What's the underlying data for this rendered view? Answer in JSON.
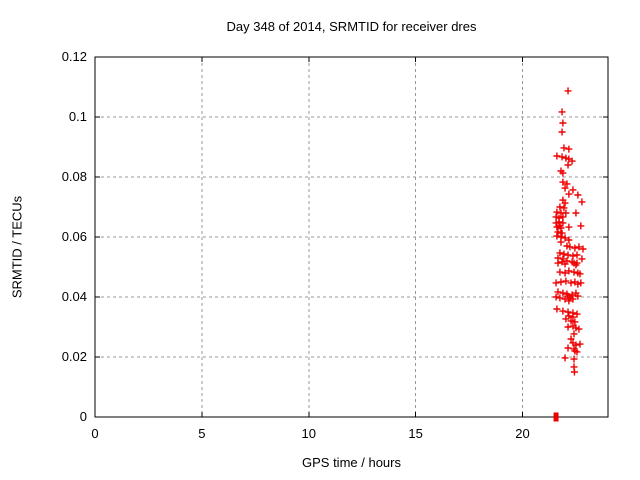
{
  "page": {
    "background": "#ffffff"
  },
  "chart_data": {
    "type": "scatter",
    "title": "Day 348 of 2014, SRMTID for receiver dres",
    "xlabel": "GPS time / hours",
    "ylabel": "SRMTID / TECUs",
    "xlim": [
      0,
      24
    ],
    "ylim": [
      0,
      0.12
    ],
    "xticks": [
      {
        "v": 0,
        "label": "0"
      },
      {
        "v": 5,
        "label": "5"
      },
      {
        "v": 10,
        "label": "10"
      },
      {
        "v": 15,
        "label": "15"
      },
      {
        "v": 20,
        "label": "20"
      }
    ],
    "yticks": [
      {
        "v": 0,
        "label": "0"
      },
      {
        "v": 0.02,
        "label": "0.02"
      },
      {
        "v": 0.04,
        "label": "0.04"
      },
      {
        "v": 0.06,
        "label": "0.06"
      },
      {
        "v": 0.08,
        "label": "0.08"
      },
      {
        "v": 0.1,
        "label": "0.1"
      },
      {
        "v": 0.12,
        "label": "0.12"
      }
    ],
    "grid": true,
    "grid_color": "#999999",
    "axis_color": "#000000",
    "legend": "none",
    "series": [
      {
        "name": "SRMTID values",
        "marker": "plus",
        "color": "#ee0000",
        "points": [
          [
            22.13,
            0.1087
          ],
          [
            21.85,
            0.1017
          ],
          [
            21.89,
            0.098
          ],
          [
            21.85,
            0.095
          ],
          [
            21.94,
            0.0897
          ],
          [
            22.17,
            0.0893
          ],
          [
            21.61,
            0.087
          ],
          [
            21.85,
            0.0867
          ],
          [
            22.03,
            0.0863
          ],
          [
            22.17,
            0.086
          ],
          [
            22.32,
            0.0853
          ],
          [
            22.13,
            0.084
          ],
          [
            21.8,
            0.082
          ],
          [
            21.89,
            0.0813
          ],
          [
            21.89,
            0.0783
          ],
          [
            22.08,
            0.0777
          ],
          [
            21.99,
            0.0763
          ],
          [
            22.36,
            0.0757
          ],
          [
            22.17,
            0.0743
          ],
          [
            22.59,
            0.074
          ],
          [
            21.89,
            0.0723
          ],
          [
            22.78,
            0.0717
          ],
          [
            21.99,
            0.0713
          ],
          [
            21.75,
            0.07
          ],
          [
            21.94,
            0.0697
          ],
          [
            21.61,
            0.0683
          ],
          [
            21.8,
            0.068
          ],
          [
            22.03,
            0.068
          ],
          [
            22.5,
            0.068
          ],
          [
            21.57,
            0.0667
          ],
          [
            21.71,
            0.0663
          ],
          [
            21.89,
            0.0667
          ],
          [
            21.71,
            0.065
          ],
          [
            21.57,
            0.0647
          ],
          [
            21.89,
            0.0647
          ],
          [
            21.75,
            0.0637
          ],
          [
            21.61,
            0.0633
          ],
          [
            21.8,
            0.063
          ],
          [
            22.17,
            0.0633
          ],
          [
            22.73,
            0.0637
          ],
          [
            21.66,
            0.0617
          ],
          [
            21.85,
            0.0613
          ],
          [
            21.61,
            0.0603
          ],
          [
            21.8,
            0.06
          ],
          [
            21.99,
            0.0597
          ],
          [
            22.17,
            0.059
          ],
          [
            21.8,
            0.0583
          ],
          [
            22.08,
            0.057
          ],
          [
            22.22,
            0.0567
          ],
          [
            22.45,
            0.0563
          ],
          [
            22.64,
            0.0567
          ],
          [
            22.83,
            0.056
          ],
          [
            21.75,
            0.0547
          ],
          [
            21.94,
            0.0543
          ],
          [
            22.13,
            0.054
          ],
          [
            22.36,
            0.0537
          ],
          [
            22.55,
            0.054
          ],
          [
            21.66,
            0.053
          ],
          [
            21.89,
            0.0527
          ],
          [
            22.08,
            0.052
          ],
          [
            22.32,
            0.0517
          ],
          [
            22.55,
            0.0513
          ],
          [
            22.78,
            0.0527
          ],
          [
            21.66,
            0.0513
          ],
          [
            21.85,
            0.0517
          ],
          [
            21.99,
            0.051
          ],
          [
            22.41,
            0.0513
          ],
          [
            22.5,
            0.0507
          ],
          [
            21.75,
            0.0483
          ],
          [
            21.99,
            0.048
          ],
          [
            22.17,
            0.0487
          ],
          [
            22.41,
            0.0483
          ],
          [
            22.59,
            0.048
          ],
          [
            22.69,
            0.0477
          ],
          [
            21.57,
            0.0447
          ],
          [
            21.8,
            0.045
          ],
          [
            22.03,
            0.0453
          ],
          [
            22.27,
            0.0447
          ],
          [
            22.45,
            0.045
          ],
          [
            22.59,
            0.0443
          ],
          [
            22.73,
            0.0447
          ],
          [
            21.66,
            0.0417
          ],
          [
            21.89,
            0.0413
          ],
          [
            22.08,
            0.041
          ],
          [
            22.32,
            0.0407
          ],
          [
            22.5,
            0.0413
          ],
          [
            22.59,
            0.0403
          ],
          [
            21.57,
            0.04
          ],
          [
            21.75,
            0.0397
          ],
          [
            21.99,
            0.0393
          ],
          [
            22.17,
            0.0387
          ],
          [
            22.36,
            0.0393
          ],
          [
            22.13,
            0.0403
          ],
          [
            22.22,
            0.0397
          ],
          [
            21.61,
            0.036
          ],
          [
            21.89,
            0.0353
          ],
          [
            22.13,
            0.035
          ],
          [
            22.36,
            0.0347
          ],
          [
            22.55,
            0.0343
          ],
          [
            22.17,
            0.0337
          ],
          [
            22.36,
            0.0333
          ],
          [
            22.03,
            0.0327
          ],
          [
            22.27,
            0.032
          ],
          [
            22.45,
            0.0317
          ],
          [
            22.36,
            0.0303
          ],
          [
            22.13,
            0.03
          ],
          [
            22.5,
            0.0297
          ],
          [
            22.64,
            0.0293
          ],
          [
            22.41,
            0.0277
          ],
          [
            22.27,
            0.026
          ],
          [
            22.36,
            0.0247
          ],
          [
            22.69,
            0.0243
          ],
          [
            22.5,
            0.024
          ],
          [
            22.13,
            0.023
          ],
          [
            22.41,
            0.0227
          ],
          [
            22.45,
            0.022
          ],
          [
            22.55,
            0.0217
          ],
          [
            21.99,
            0.0197
          ],
          [
            22.41,
            0.0193
          ],
          [
            22.41,
            0.0167
          ],
          [
            22.43,
            0.015
          ]
        ]
      },
      {
        "name": "zero values",
        "marker": "square",
        "color": "#ee0000",
        "points": [
          [
            21.57,
            0
          ]
        ]
      }
    ]
  }
}
